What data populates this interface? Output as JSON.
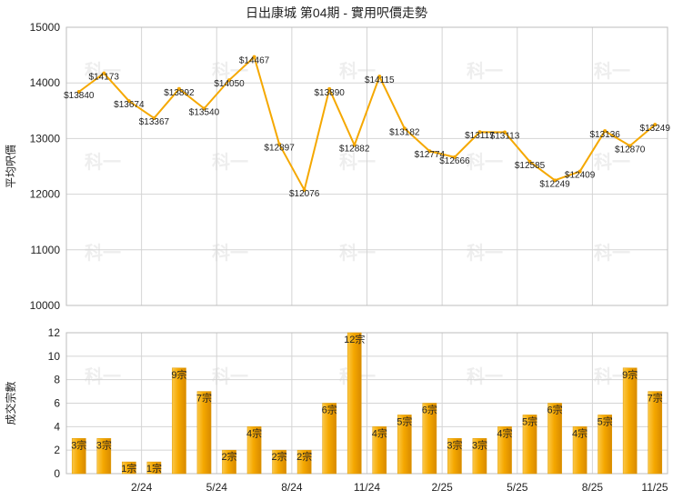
{
  "chart_data": [
    {
      "type": "line",
      "title": "日出康城 第04期 - 實用呎價走勢",
      "ylabel": "平均呎價",
      "ylim": [
        10000,
        15000
      ],
      "yticks": [
        10000,
        11000,
        12000,
        13000,
        14000,
        15000
      ],
      "grid": true,
      "color": "#f5a800",
      "series": [
        {
          "values": [
            13840,
            14173,
            13674,
            13367,
            13892,
            13540,
            14050,
            14467,
            12897,
            12076,
            13890,
            12882,
            14115,
            13182,
            12774,
            12666,
            13117,
            13113,
            12585,
            12249,
            12409,
            13136,
            12870,
            13249
          ],
          "labels": [
            "$13840",
            "$14173",
            "$13674",
            "$13367",
            "$13892",
            "$13540",
            "$14050",
            "$14467",
            "$12897",
            "$12076",
            "$13890",
            "$12882",
            "$14115",
            "$13182",
            "$12774",
            "$12666",
            "$13117",
            "$13113",
            "$12585",
            "$12249",
            "$12409",
            "$13136",
            "$12870",
            "$13249"
          ]
        }
      ]
    },
    {
      "type": "bar",
      "ylabel": "成交宗數",
      "ylim": [
        0,
        12
      ],
      "yticks": [
        0,
        2,
        4,
        6,
        8,
        10,
        12
      ],
      "grid": true,
      "color": "#f5a800",
      "xtick_labels": [
        "2/24",
        "5/24",
        "8/24",
        "11/24",
        "2/25",
        "5/25",
        "8/25",
        "11/25"
      ],
      "series": [
        {
          "values": [
            3,
            3,
            1,
            1,
            9,
            7,
            2,
            4,
            2,
            2,
            6,
            12,
            4,
            5,
            6,
            3,
            3,
            4,
            5,
            6,
            4,
            5,
            9,
            7
          ],
          "labels": [
            "3宗",
            "3宗",
            "1宗",
            "1宗",
            "9宗",
            "7宗",
            "2宗",
            "4宗",
            "2宗",
            "2宗",
            "6宗",
            "12宗",
            "4宗",
            "5宗",
            "6宗",
            "3宗",
            "3宗",
            "4宗",
            "5宗",
            "6宗",
            "4宗",
            "5宗",
            "9宗",
            "7宗"
          ]
        }
      ]
    }
  ],
  "watermark": "科一"
}
